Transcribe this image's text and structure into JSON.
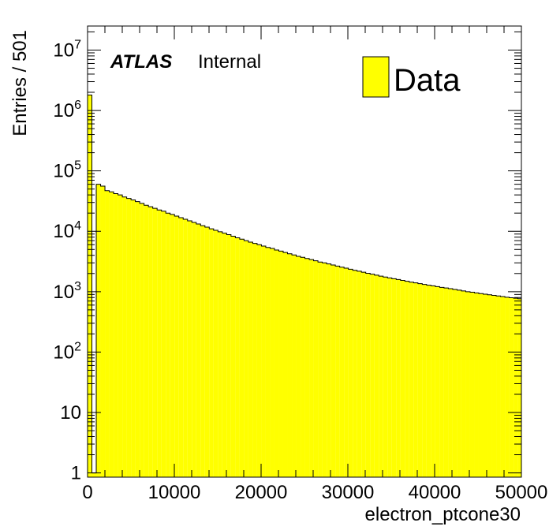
{
  "chart_data": {
    "type": "bar",
    "xlabel": "electron_ptcone30",
    "ylabel": "Entries / 501",
    "y_scale": "log",
    "xlim": [
      0,
      50000
    ],
    "ylim": [
      0.85,
      25000000
    ],
    "x_ticks": [
      "0",
      "10000",
      "20000",
      "30000",
      "40000",
      "50000"
    ],
    "y_ticks": [
      {
        "base": "1",
        "exp": ""
      },
      {
        "base": "10",
        "exp": ""
      },
      {
        "base": "10",
        "exp": "2"
      },
      {
        "base": "10",
        "exp": "3"
      },
      {
        "base": "10",
        "exp": "4"
      },
      {
        "base": "10",
        "exp": "5"
      },
      {
        "base": "10",
        "exp": "6"
      },
      {
        "base": "10",
        "exp": "7"
      }
    ],
    "bin_width": 501,
    "fill_color": "#ffff00",
    "edge_color": "#000000",
    "legend": {
      "placement": "top-right",
      "entries": [
        {
          "label": "Data",
          "color": "#ffff00"
        }
      ]
    },
    "annotation": {
      "bold": "ATLAS",
      "normal": "Internal"
    },
    "series": [
      {
        "name": "Data",
        "bin_low_edges": [
          0,
          501,
          1002,
          1503,
          2004,
          2505,
          3006,
          3507,
          4008,
          4509,
          5010,
          5511,
          6012,
          6513,
          7014,
          7515,
          8016,
          8517,
          9018,
          9519,
          10020,
          10521,
          11022,
          11523,
          12024,
          12525,
          13026,
          13527,
          14028,
          14529,
          15030,
          15531,
          16032,
          16533,
          17034,
          17535,
          18036,
          18537,
          19038,
          19539,
          20040,
          20541,
          21042,
          21543,
          22044,
          22545,
          23046,
          23547,
          24048,
          24549,
          25050,
          25551,
          26052,
          26553,
          27054,
          27555,
          28056,
          28557,
          29058,
          29559,
          30060,
          30561,
          31062,
          31563,
          32064,
          32565,
          33066,
          33567,
          34068,
          34569,
          35070,
          35571,
          36072,
          36573,
          37074,
          37575,
          38076,
          38577,
          39078,
          39579,
          40080,
          40581,
          41082,
          41583,
          42084,
          42585,
          43086,
          43587,
          44088,
          44589,
          45090,
          45591,
          46092,
          46593,
          47094,
          47595,
          48096,
          48597,
          49098,
          49599
        ],
        "values": [
          1800000,
          1,
          60000,
          56000,
          47000,
          45000,
          42000,
          40000,
          37000,
          35000,
          33000,
          31000,
          29000,
          27000,
          25500,
          24000,
          22500,
          21500,
          20000,
          19000,
          17800,
          16800,
          15800,
          14900,
          14000,
          13200,
          12400,
          11700,
          11000,
          10400,
          9800,
          9300,
          8800,
          8300,
          7800,
          7400,
          7000,
          6600,
          6300,
          6000,
          5700,
          5400,
          5200,
          4900,
          4700,
          4450,
          4250,
          4050,
          3850,
          3700,
          3550,
          3400,
          3250,
          3100,
          3000,
          2880,
          2760,
          2650,
          2550,
          2450,
          2350,
          2260,
          2180,
          2100,
          2020,
          1950,
          1880,
          1810,
          1750,
          1690,
          1640,
          1590,
          1540,
          1490,
          1440,
          1400,
          1360,
          1320,
          1280,
          1250,
          1215,
          1180,
          1150,
          1120,
          1090,
          1060,
          1030,
          1000,
          980,
          955,
          930,
          910,
          890,
          870,
          850,
          830,
          810,
          795,
          780,
          765
        ]
      }
    ]
  }
}
